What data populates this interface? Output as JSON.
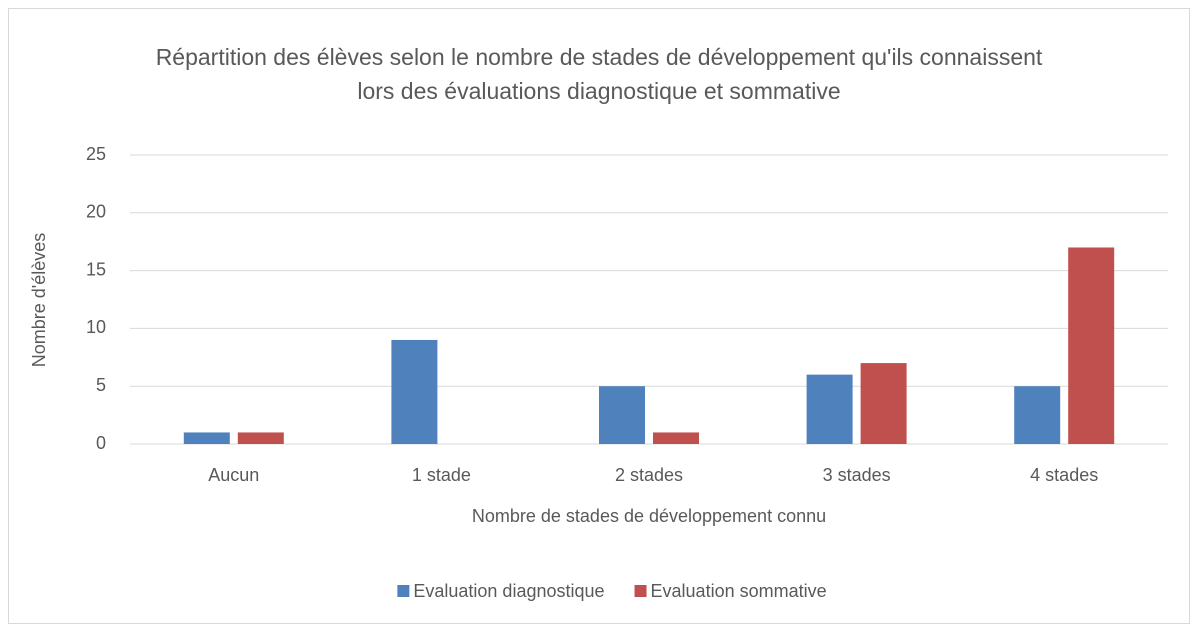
{
  "chart_data": {
    "type": "bar",
    "title": "Répartition des élèves selon le nombre de stades de développement qu'ils connaissent lors des évaluations diagnostique et sommative",
    "x_label": "Nombre de stades de développement connu",
    "y_label": "Nombre d'élèves",
    "categories": [
      "Aucun",
      "1 stade",
      "2 stades",
      "3 stades",
      "4 stades"
    ],
    "series": [
      {
        "name": "Evaluation diagnostique",
        "color": "#4f81bd",
        "values": [
          1,
          9,
          5,
          6,
          5
        ]
      },
      {
        "name": "Evaluation sommative",
        "color": "#c0504d",
        "values": [
          1,
          0,
          1,
          7,
          17
        ]
      }
    ],
    "ylim": [
      0,
      25
    ],
    "yticks": [
      0,
      5,
      10,
      15,
      20,
      25
    ],
    "grid": true,
    "legend": "bottom"
  }
}
